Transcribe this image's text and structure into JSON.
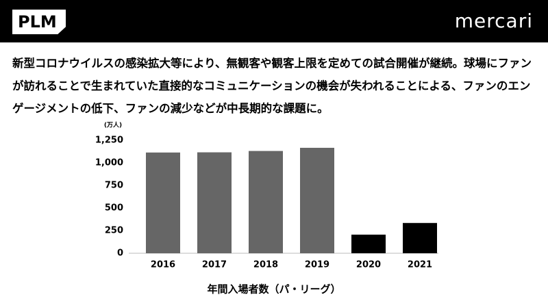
{
  "header": {
    "logo": "PLM",
    "brand": "mercari"
  },
  "body_text": "新型コロナウイルスの感染拡大等により、無観客や観客上限を定めての試合開催が継続。球場にファンが訪れることで生まれていた直接的なコミュニケーションの機会が失われることによる、ファンのエンゲージメントの低下、ファンの減少などが中長期的な課題に。",
  "chart_data": {
    "type": "bar",
    "unit_label": "(万人)",
    "x_label": "年間入場者数（パ・リーグ）",
    "categories": [
      "2016",
      "2017",
      "2018",
      "2019",
      "2020",
      "2021"
    ],
    "values": [
      1115,
      1117,
      1132,
      1167,
      206,
      335
    ],
    "colors": [
      "#666666",
      "#666666",
      "#666666",
      "#666666",
      "#000000",
      "#000000"
    ],
    "ylim": [
      0,
      1250
    ],
    "yticks": [
      0,
      250,
      500,
      750,
      {
        "value": 1000,
        "label": "1,000"
      },
      {
        "value": 1250,
        "label": "1,250"
      }
    ],
    "grid": false
  }
}
